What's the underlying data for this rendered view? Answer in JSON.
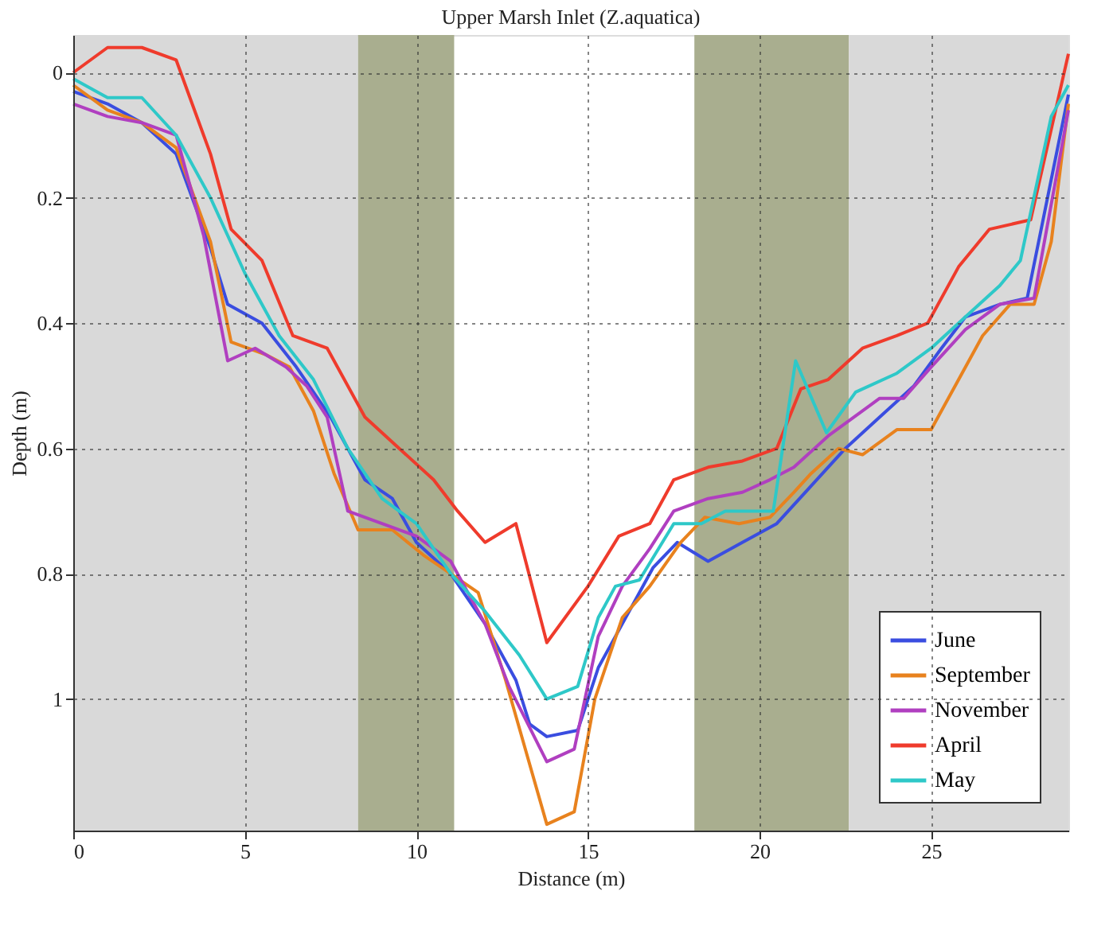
{
  "chart_data": {
    "type": "line",
    "title": "Upper Marsh Inlet (Z.aquatica)",
    "xlabel": "Distance (m)",
    "ylabel": "Depth (m)",
    "xlim": [
      0,
      29
    ],
    "ylim": [
      1.21,
      -0.06
    ],
    "xticks": [
      0,
      5,
      10,
      15,
      20,
      25
    ],
    "yticks": [
      0,
      0.2,
      0.4,
      0.6,
      0.8,
      1
    ],
    "grid": true,
    "legend": "bottom right",
    "line_style": "solid",
    "marker": "none",
    "bands": [
      {
        "axis": "x",
        "from": 0,
        "to": 8.3,
        "color": "#d9d9d9"
      },
      {
        "axis": "x",
        "from": 8.3,
        "to": 11.1,
        "color": "#a9ae8f"
      },
      {
        "axis": "x",
        "from": 18.1,
        "to": 22.6,
        "color": "#a9ae8f"
      },
      {
        "axis": "x",
        "from": 22.6,
        "to": 29,
        "color": "#d9d9d9"
      }
    ],
    "series": [
      {
        "name": "June",
        "color": "#3a4de0",
        "x": [
          0,
          1,
          2,
          3,
          4,
          4.5,
          5.5,
          6.5,
          7.5,
          8.5,
          9.3,
          10,
          11,
          12,
          12.9,
          13.3,
          13.8,
          14.7,
          15.3,
          16,
          16.9,
          17.6,
          18.5,
          19.5,
          20.5,
          21.5,
          22.5,
          23.5,
          24.5,
          25.3,
          26,
          27,
          27.8,
          29
        ],
        "values": [
          0.03,
          0.05,
          0.08,
          0.13,
          0.28,
          0.37,
          0.4,
          0.47,
          0.55,
          0.65,
          0.68,
          0.75,
          0.8,
          0.88,
          0.97,
          1.04,
          1.06,
          1.05,
          0.95,
          0.88,
          0.79,
          0.75,
          0.78,
          0.75,
          0.72,
          0.66,
          0.6,
          0.55,
          0.5,
          0.44,
          0.39,
          0.37,
          0.36,
          0.035
        ]
      },
      {
        "name": "September",
        "color": "#e8821e",
        "x": [
          0,
          1,
          2,
          3,
          4,
          4.6,
          5.6,
          6.3,
          7,
          7.6,
          8.3,
          9.3,
          10.2,
          11,
          11.8,
          12.6,
          13.8,
          14.6,
          15.2,
          16,
          16.8,
          17.7,
          18.4,
          19.4,
          20.3,
          21,
          21.5,
          22.3,
          23,
          24,
          25,
          25.7,
          26.5,
          27.3,
          28,
          28.5,
          29
        ],
        "values": [
          0.02,
          0.06,
          0.08,
          0.12,
          0.27,
          0.43,
          0.45,
          0.47,
          0.54,
          0.64,
          0.73,
          0.73,
          0.77,
          0.8,
          0.83,
          0.97,
          1.2,
          1.18,
          1.0,
          0.87,
          0.82,
          0.75,
          0.71,
          0.72,
          0.71,
          0.67,
          0.64,
          0.6,
          0.61,
          0.57,
          0.57,
          0.5,
          0.42,
          0.37,
          0.37,
          0.27,
          0.05
        ]
      },
      {
        "name": "November",
        "color": "#b03fc0",
        "x": [
          0,
          1,
          2,
          3,
          3.8,
          4.5,
          5.3,
          6.2,
          6.8,
          7.4,
          8,
          9,
          10,
          11,
          12,
          12.7,
          13.8,
          14.6,
          15.3,
          16,
          16.8,
          17.5,
          18.5,
          19.5,
          20.3,
          21,
          22,
          23.5,
          24.2,
          25,
          26,
          27,
          28,
          29
        ],
        "values": [
          0.05,
          0.07,
          0.08,
          0.1,
          0.26,
          0.46,
          0.44,
          0.47,
          0.5,
          0.55,
          0.7,
          0.72,
          0.74,
          0.78,
          0.88,
          0.98,
          1.1,
          1.08,
          0.9,
          0.82,
          0.76,
          0.7,
          0.68,
          0.67,
          0.65,
          0.63,
          0.58,
          0.52,
          0.52,
          0.47,
          0.41,
          0.37,
          0.36,
          0.06
        ]
      },
      {
        "name": "April",
        "color": "#ef3b2c",
        "x": [
          0,
          1,
          2,
          3,
          4,
          4.6,
          5.5,
          6.4,
          7.4,
          8.5,
          9.5,
          10.5,
          11.2,
          12,
          12.9,
          13.8,
          15,
          15.9,
          16.8,
          17.5,
          18.5,
          19.5,
          20.5,
          21.2,
          22,
          23,
          24,
          24.9,
          25.8,
          26.7,
          27.9,
          29
        ],
        "values": [
          0,
          -0.04,
          -0.04,
          -0.02,
          0.13,
          0.25,
          0.3,
          0.42,
          0.44,
          0.55,
          0.6,
          0.65,
          0.7,
          0.75,
          0.72,
          0.91,
          0.82,
          0.74,
          0.72,
          0.65,
          0.63,
          0.62,
          0.6,
          0.505,
          0.49,
          0.44,
          0.42,
          0.4,
          0.31,
          0.25,
          0.235,
          -0.03
        ]
      },
      {
        "name": "May",
        "color": "#2ec8c8",
        "x": [
          0,
          1,
          2,
          3,
          4,
          5,
          6,
          7,
          8,
          9,
          10,
          11,
          12,
          13,
          13.8,
          14.7,
          15.3,
          15.8,
          16.5,
          17.5,
          18.3,
          19,
          20,
          20.4,
          21.05,
          21.95,
          22.8,
          24,
          25,
          26,
          27,
          27.6,
          28.5,
          29
        ],
        "values": [
          0.01,
          0.04,
          0.04,
          0.1,
          0.2,
          0.32,
          0.42,
          0.49,
          0.6,
          0.68,
          0.72,
          0.8,
          0.86,
          0.93,
          1.0,
          0.98,
          0.87,
          0.82,
          0.81,
          0.72,
          0.72,
          0.7,
          0.7,
          0.7,
          0.46,
          0.575,
          0.51,
          0.48,
          0.44,
          0.39,
          0.34,
          0.3,
          0.07,
          0.02
        ]
      }
    ]
  }
}
